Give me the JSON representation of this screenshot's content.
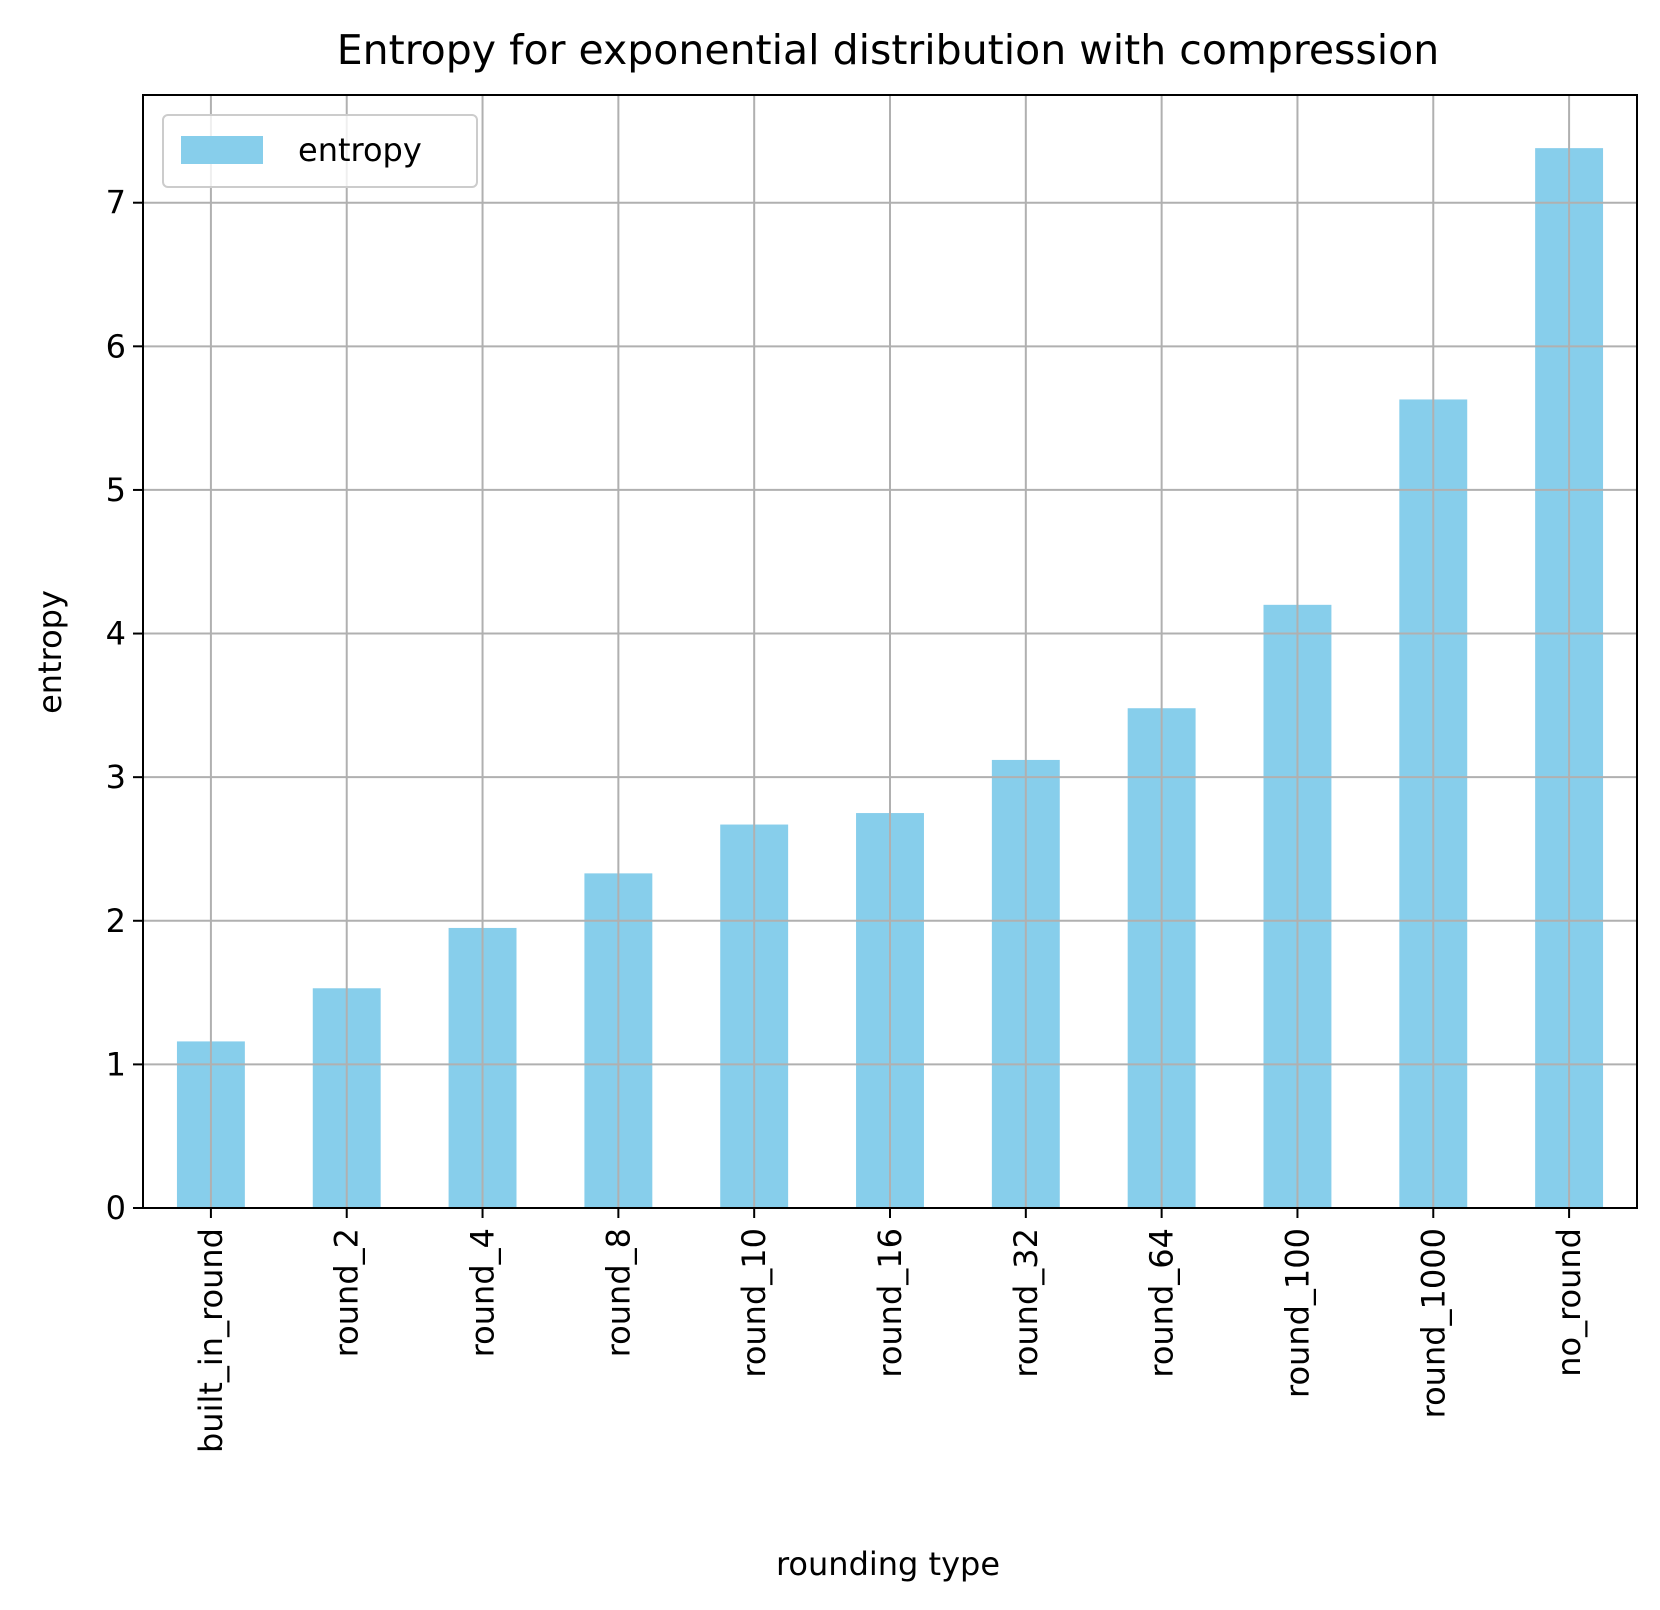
{
  "chart_data": {
    "type": "bar",
    "title": "Entropy for exponential distribution with compression",
    "xlabel": "rounding type",
    "ylabel": "entropy",
    "categories": [
      "built_in_round",
      "round_2",
      "round_4",
      "round_8",
      "round_10",
      "round_16",
      "round_32",
      "round_64",
      "round_100",
      "round_1000",
      "no_round"
    ],
    "series": [
      {
        "name": "entropy",
        "values": [
          1.16,
          1.53,
          1.95,
          2.33,
          2.67,
          2.75,
          3.12,
          3.48,
          4.2,
          5.63,
          7.38
        ]
      }
    ],
    "ylim": [
      0,
      7.75
    ],
    "yticks": [
      0,
      1,
      2,
      3,
      4,
      5,
      6,
      7
    ],
    "grid": true,
    "legend_position": "top-left",
    "bar_color": "#87ceeb",
    "grid_color": "#b0b0b0"
  }
}
